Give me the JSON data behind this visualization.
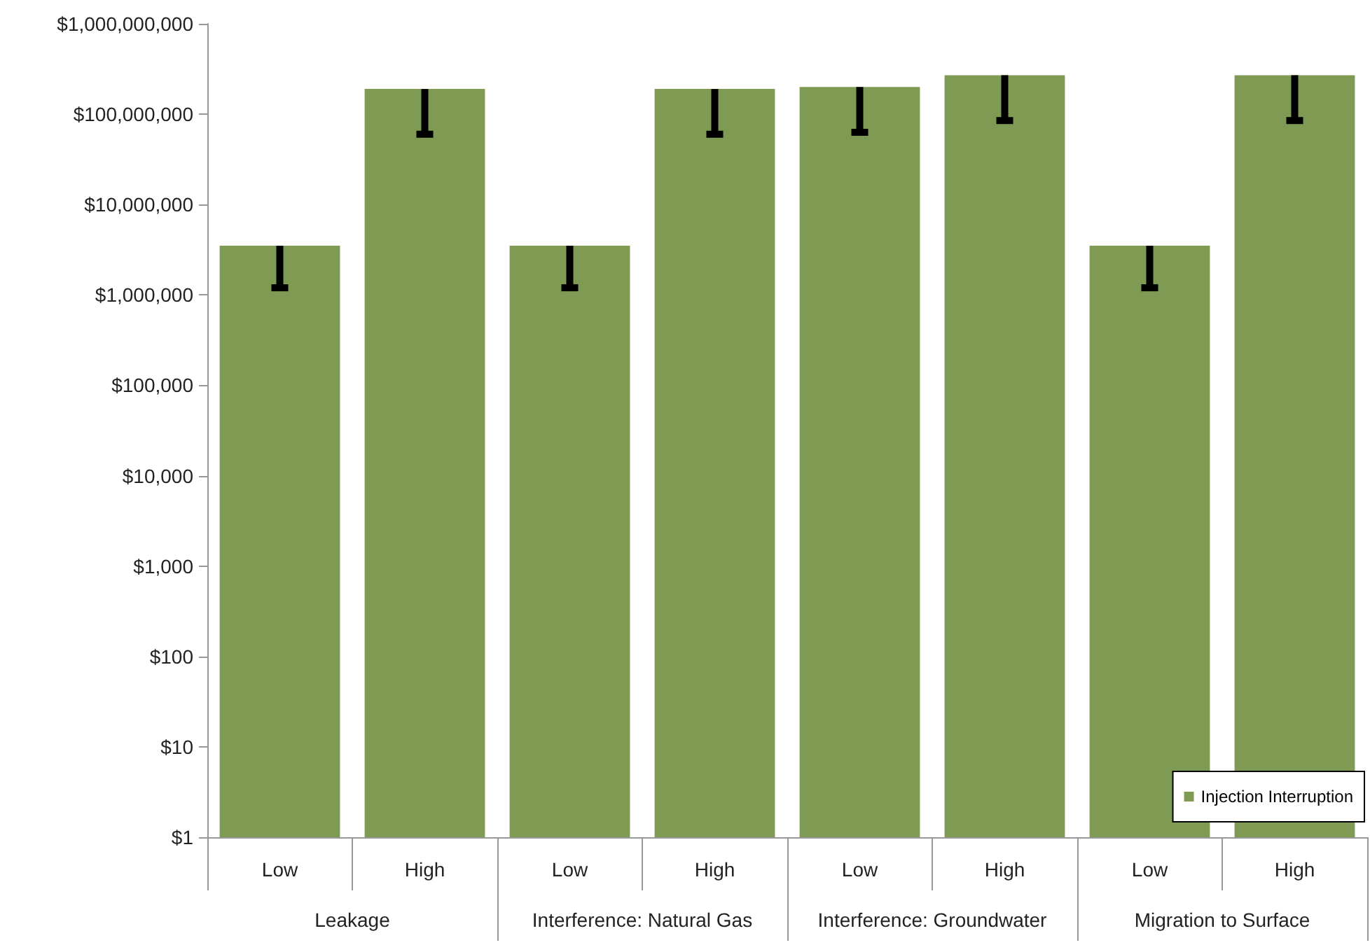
{
  "chart_data": {
    "type": "bar",
    "categories": [
      "Low",
      "High",
      "Low",
      "High",
      "Low",
      "High",
      "Low",
      "High"
    ],
    "series": [
      {
        "name": "Injection Interruption",
        "color": "#7f9b53",
        "values": [
          3500000,
          190000000,
          3500000,
          190000000,
          200000000,
          270000000,
          3500000,
          270000000
        ],
        "errors": [
          [
            1200000,
            3500000
          ],
          [
            60000000,
            190000000
          ],
          [
            1200000,
            3500000
          ],
          [
            60000000,
            190000000
          ],
          [
            63000000,
            200000000
          ],
          [
            85000000,
            270000000
          ],
          [
            1200000,
            3500000
          ],
          [
            85000000,
            270000000
          ]
        ]
      }
    ],
    "annotations": [
      "Leakage",
      "Interference: Natural Gas",
      "Interference: Groundwater",
      "Migration to Surface"
    ],
    "log": "y",
    "ylim": [
      1,
      1000000000
    ],
    "yticks": [
      {
        "value": 1,
        "label": "$1"
      },
      {
        "value": 10,
        "label": "$10"
      },
      {
        "value": 100,
        "label": "$100"
      },
      {
        "value": 1000,
        "label": "$1,000"
      },
      {
        "value": 10000,
        "label": "$10,000"
      },
      {
        "value": 100000,
        "label": "$100,000"
      },
      {
        "value": 1000000,
        "label": "$1,000,000"
      },
      {
        "value": 10000000,
        "label": "$10,000,000"
      },
      {
        "value": 100000000,
        "label": "$100,000,000"
      },
      {
        "value": 1000000000,
        "label": "$1,000,000,000"
      }
    ],
    "grid": false,
    "legend": "bottom right"
  }
}
